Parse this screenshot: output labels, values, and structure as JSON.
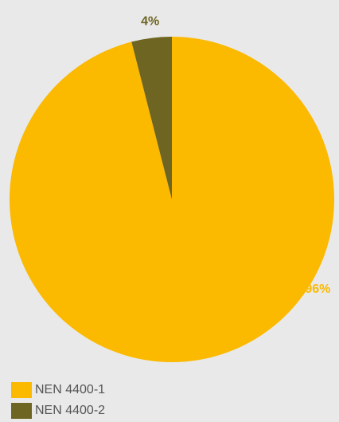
{
  "chart_data": {
    "type": "pie",
    "title": "",
    "slices": [
      {
        "label": "NEN 4400-1",
        "value": 96,
        "data_label": "96%",
        "color": "#fbb900"
      },
      {
        "label": "NEN 4400-2",
        "value": 4,
        "data_label": "4%",
        "color": "#6f6522"
      }
    ],
    "start_angle_deg": 0,
    "direction": "clockwise",
    "legend_position": "bottom-left"
  },
  "legend": {
    "items": [
      {
        "label": "NEN 4400-1",
        "color": "#fbb900"
      },
      {
        "label": "NEN 4400-2",
        "color": "#6f6522"
      }
    ]
  }
}
